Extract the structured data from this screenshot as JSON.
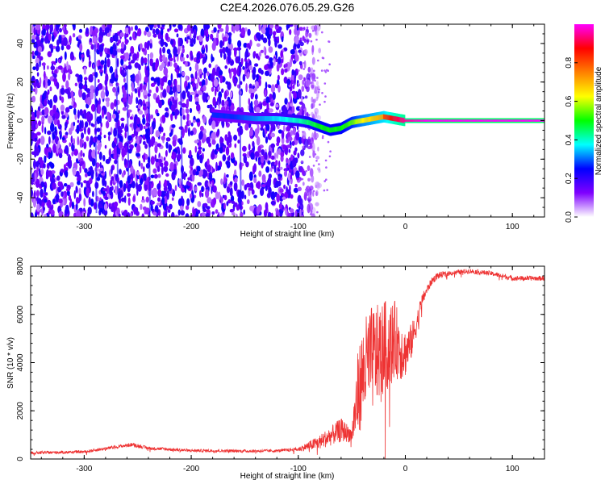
{
  "figure": {
    "title": "C2E4.2026.076.05.29.G26"
  },
  "chart_data": [
    {
      "type": "heatmap",
      "xlabel": "Height of straight line (km)",
      "ylabel": "Frequency (Hz)",
      "xlim": [
        -350,
        130
      ],
      "ylim": [
        -50,
        50
      ],
      "x_ticks": [
        -300,
        -200,
        -100,
        0,
        100
      ],
      "y_ticks": [
        -40,
        -20,
        0,
        20,
        40
      ],
      "x_tick_labels": [
        "-300",
        "-200",
        "-100",
        "0",
        "100"
      ],
      "y_tick_labels": [
        "-40",
        "-20",
        "0",
        "20",
        "40"
      ],
      "colorbar": {
        "label": "Normalized spectral amplitude",
        "range": [
          0,
          1
        ],
        "ticks": [
          0.0,
          0.2,
          0.4,
          0.6,
          0.8
        ],
        "tick_labels": [
          "0.0",
          "0.2",
          "0.4",
          "0.6",
          "0.8"
        ],
        "colors": [
          "#ffffff",
          "#7f00ff",
          "#0000ff",
          "#00ffff",
          "#00ff00",
          "#ffff00",
          "#ff8000",
          "#ff0000",
          "#ff00ff"
        ]
      },
      "ridge": {
        "x": [
          -180,
          -160,
          -140,
          -120,
          -100,
          -90,
          -80,
          -70,
          -60,
          -50,
          -40,
          -30,
          -20,
          -10,
          0,
          20,
          50,
          80,
          130
        ],
        "y": [
          3,
          2,
          1,
          1,
          0,
          -1,
          -3,
          -5,
          -4,
          -1,
          0,
          1,
          2,
          1,
          0,
          0,
          0,
          0,
          0
        ],
        "amplitude": [
          0.3,
          0.3,
          0.35,
          0.4,
          0.45,
          0.5,
          0.55,
          0.55,
          0.55,
          0.6,
          0.7,
          0.75,
          0.8,
          0.9,
          0.95,
          1.0,
          1.0,
          1.0,
          1.0
        ]
      },
      "noise_region": {
        "x_from": -350,
        "x_to": -100,
        "fade_to": -80,
        "amplitude": 0.2
      }
    },
    {
      "type": "line",
      "xlabel": "Height of straight line (km)",
      "ylabel": "SNR (10 * v/v)",
      "xlim": [
        -350,
        130
      ],
      "ylim": [
        0,
        8000
      ],
      "x_ticks": [
        -300,
        -200,
        -100,
        0,
        100
      ],
      "y_ticks": [
        0,
        2000,
        4000,
        6000,
        8000
      ],
      "x_tick_labels": [
        "-300",
        "-200",
        "-100",
        "0",
        "100"
      ],
      "y_tick_labels": [
        "0",
        "2000",
        "4000",
        "6000",
        "8000"
      ],
      "series": [
        {
          "color": "#ee3333",
          "x": [
            -350,
            -300,
            -270,
            -255,
            -240,
            -200,
            -150,
            -120,
            -100,
            -80,
            -60,
            -50,
            -45,
            -40,
            -35,
            -30,
            -25,
            -20,
            -15,
            -10,
            -5,
            0,
            5,
            10,
            15,
            20,
            25,
            30,
            40,
            60,
            80,
            100,
            110,
            130
          ],
          "y": [
            250,
            300,
            500,
            600,
            450,
            350,
            330,
            340,
            400,
            700,
            1200,
            1000,
            2500,
            3500,
            4000,
            4200,
            4400,
            4600,
            4800,
            5000,
            4600,
            4400,
            4800,
            5500,
            6500,
            7000,
            7400,
            7600,
            7700,
            7800,
            7700,
            7500,
            7500,
            7500
          ],
          "noise": [
            60,
            60,
            70,
            80,
            70,
            60,
            60,
            60,
            80,
            300,
            500,
            300,
            1800,
            2000,
            2200,
            2200,
            2000,
            2000,
            1800,
            1600,
            1400,
            1000,
            800,
            500,
            300,
            200,
            150,
            150,
            100,
            100,
            100,
            100,
            100,
            100
          ]
        }
      ]
    }
  ]
}
